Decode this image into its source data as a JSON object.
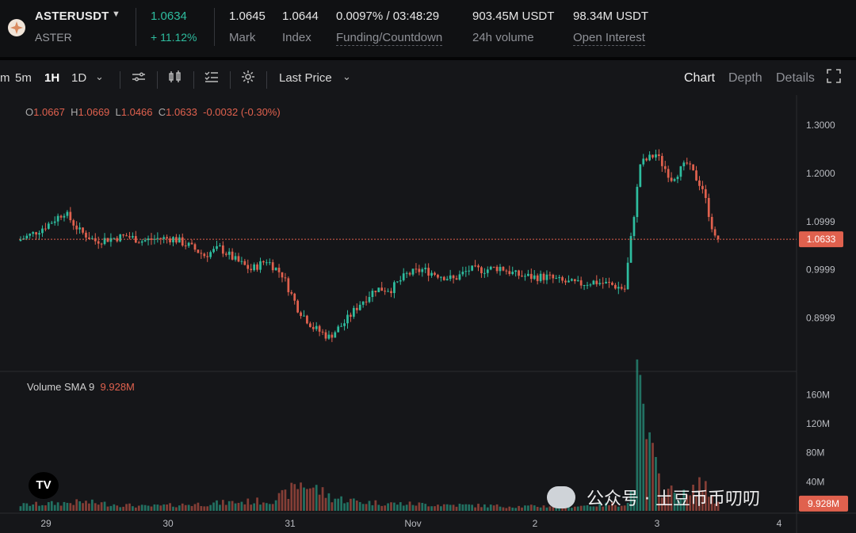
{
  "header": {
    "symbol": "ASTERUSDT",
    "base": "ASTER",
    "last_price": "1.0634",
    "change_pct": "+ 11.12%",
    "mark_value": "1.0645",
    "mark_label": "Mark",
    "index_value": "1.0644",
    "index_label": "Index",
    "funding_value": "0.0097% / 03:48:29",
    "funding_label": "Funding/Countdown",
    "volume_value": "903.45M USDT",
    "volume_label": "24h volume",
    "oi_value": "98.34M USDT",
    "oi_label": "Open Interest"
  },
  "toolbar": {
    "intervals": [
      "m",
      "5m",
      "1H",
      "1D"
    ],
    "active_interval": "1H",
    "price_type": "Last Price",
    "tabs": [
      "Chart",
      "Depth",
      "Details"
    ],
    "active_tab": "Chart"
  },
  "colors": {
    "up": "#2ebd9f",
    "down": "#e0614e",
    "bg": "#151619"
  },
  "ohlc": {
    "o_label": "O",
    "o": "1.0667",
    "h_label": "H",
    "h": "1.0669",
    "l_label": "L",
    "l": "1.0466",
    "c_label": "C",
    "c": "1.0633",
    "change": "-0.0032 (-0.30%)"
  },
  "volume_indicator": {
    "label": "Volume SMA 9",
    "value": "9.928M"
  },
  "watermark": "公众号 · 土豆币币叨叨",
  "logo_text": "TV",
  "chart_data": {
    "type": "candlestick",
    "price_axis_ticks": [
      "1.3000",
      "1.2000",
      "1.0999",
      "0.9999",
      "0.8999"
    ],
    "price_axis_values": [
      1.3,
      1.2,
      1.0999,
      0.9999,
      0.8999
    ],
    "current_price_label": "1.0633",
    "current_price": 1.0633,
    "volume_axis_ticks": [
      "160M",
      "120M",
      "80M",
      "40M"
    ],
    "volume_axis_values": [
      160,
      120,
      80,
      40
    ],
    "volume_current_label": "9.928M",
    "x_ticks": [
      "29",
      "30",
      "31",
      "Nov",
      "2",
      "3",
      "4"
    ],
    "price_range": [
      0.82,
      1.33
    ],
    "volume_range": [
      0,
      180
    ],
    "segments": [
      [
        0,
        1.06
      ],
      [
        5,
        1.075
      ],
      [
        10,
        1.095
      ],
      [
        15,
        1.12
      ],
      [
        20,
        1.08
      ],
      [
        25,
        1.06
      ],
      [
        30,
        1.065
      ],
      [
        35,
        1.07
      ],
      [
        40,
        1.06
      ],
      [
        45,
        1.065
      ],
      [
        50,
        1.065
      ],
      [
        55,
        1.05
      ],
      [
        60,
        1.03
      ],
      [
        65,
        1.045
      ],
      [
        70,
        1.02
      ],
      [
        75,
        1.0
      ],
      [
        80,
        1.02
      ],
      [
        85,
        0.99
      ],
      [
        90,
        0.92
      ],
      [
        95,
        0.88
      ],
      [
        100,
        0.86
      ],
      [
        105,
        0.89
      ],
      [
        110,
        0.93
      ],
      [
        115,
        0.96
      ],
      [
        120,
        0.96
      ],
      [
        125,
        0.99
      ],
      [
        130,
        1.0
      ],
      [
        135,
        0.99
      ],
      [
        140,
        0.98
      ],
      [
        145,
        1.0
      ],
      [
        150,
        1.0
      ],
      [
        155,
        1.005
      ],
      [
        160,
        0.99
      ],
      [
        165,
        0.985
      ],
      [
        170,
        0.985
      ],
      [
        175,
        0.975
      ],
      [
        180,
        0.97
      ],
      [
        185,
        0.975
      ],
      [
        190,
        0.97
      ],
      [
        195,
        0.96
      ],
      [
        200,
        1.22
      ],
      [
        205,
        1.24
      ],
      [
        210,
        1.19
      ],
      [
        215,
        1.22
      ],
      [
        220,
        1.17
      ],
      [
        224,
        1.064
      ]
    ],
    "volume_profile": [
      [
        0,
        8
      ],
      [
        20,
        12
      ],
      [
        40,
        6
      ],
      [
        60,
        10
      ],
      [
        80,
        14
      ],
      [
        85,
        22
      ],
      [
        90,
        38
      ],
      [
        95,
        30
      ],
      [
        100,
        18
      ],
      [
        110,
        12
      ],
      [
        120,
        10
      ],
      [
        140,
        8
      ],
      [
        160,
        6
      ],
      [
        180,
        7
      ],
      [
        195,
        10
      ],
      [
        197,
        40
      ],
      [
        198,
        160
      ],
      [
        200,
        120
      ],
      [
        202,
        90
      ],
      [
        204,
        55
      ],
      [
        206,
        30
      ],
      [
        210,
        25
      ],
      [
        215,
        20
      ],
      [
        218,
        40
      ],
      [
        221,
        25
      ],
      [
        224,
        10
      ]
    ],
    "n_candles": 225
  }
}
